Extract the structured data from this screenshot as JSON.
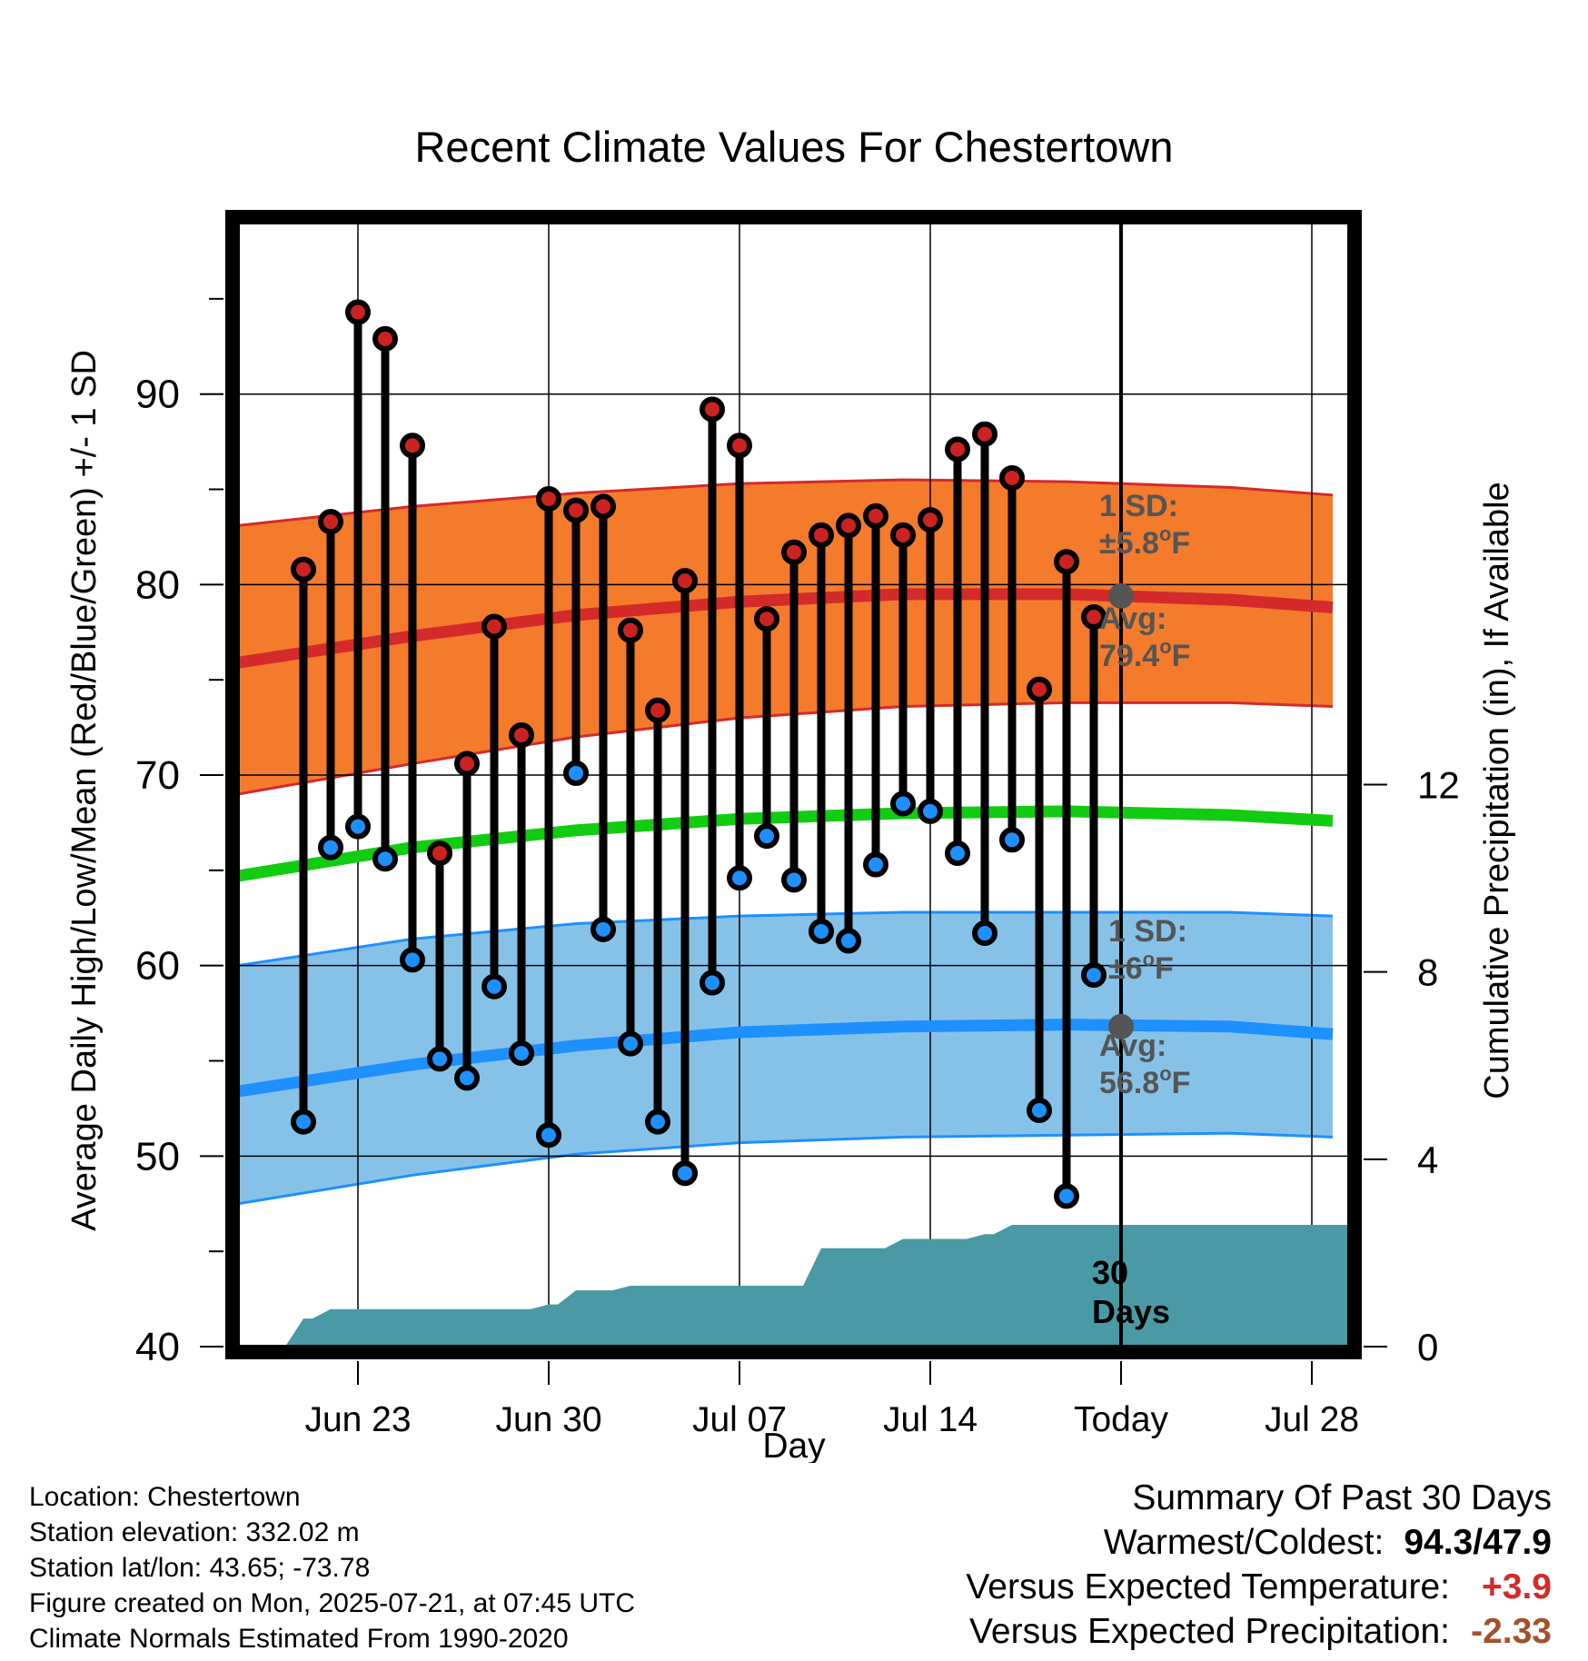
{
  "chart_data": {
    "type": "line",
    "title": "Recent Climate Values For Chestertown",
    "xlabel": "Day",
    "ylabel": "Average Daily High/Low/Mean (Red/Blue/Green) +/- 1 SD",
    "y2label": "Cumulative Precipitation (in), If Available",
    "ylim": [
      40,
      99
    ],
    "y2lim": [
      0,
      24
    ],
    "yticks": [
      40,
      50,
      60,
      70,
      80,
      90
    ],
    "y2ticks": [
      0,
      4,
      8,
      12
    ],
    "x_range": [
      "2025-06-19",
      "2025-07-31"
    ],
    "xticks": [
      {
        "date": "2025-06-23",
        "label": "Jun 23"
      },
      {
        "date": "2025-06-30",
        "label": "Jun 30"
      },
      {
        "date": "2025-07-07",
        "label": "Jul 07"
      },
      {
        "date": "2025-07-14",
        "label": "Jul 14"
      },
      {
        "date": "2025-07-21",
        "label": "Today"
      },
      {
        "date": "2025-07-28",
        "label": "Jul 28"
      }
    ],
    "grid": true,
    "today": "2025-07-21",
    "normals": {
      "dates": [
        "2025-06-19",
        "2025-06-25",
        "2025-07-01",
        "2025-07-07",
        "2025-07-13",
        "2025-07-19",
        "2025-07-25",
        "2025-07-31"
      ],
      "high_avg": [
        75.9,
        77.3,
        78.4,
        79.1,
        79.5,
        79.5,
        79.2,
        78.8
      ],
      "high_plus_sd": [
        83.1,
        84.1,
        84.8,
        85.3,
        85.5,
        85.4,
        85.1,
        84.7
      ],
      "high_minus_sd": [
        69.0,
        70.6,
        72.0,
        73.0,
        73.6,
        73.8,
        73.8,
        73.6
      ],
      "mean_avg": [
        64.7,
        66.2,
        67.1,
        67.7,
        68.0,
        68.1,
        67.9,
        67.6
      ],
      "low_avg": [
        53.4,
        54.8,
        55.8,
        56.5,
        56.8,
        56.9,
        56.8,
        56.4
      ],
      "low_plus_sd": [
        60.0,
        61.4,
        62.2,
        62.6,
        62.8,
        62.8,
        62.8,
        62.6
      ],
      "low_minus_sd": [
        47.5,
        49.0,
        50.1,
        50.7,
        51.0,
        51.1,
        51.2,
        51.0
      ]
    },
    "series": [
      {
        "name": "Daily High",
        "color": "#cc2222",
        "dates": [
          "2025-06-21",
          "2025-06-22",
          "2025-06-23",
          "2025-06-24",
          "2025-06-25",
          "2025-06-26",
          "2025-06-27",
          "2025-06-28",
          "2025-06-29",
          "2025-06-30",
          "2025-07-01",
          "2025-07-02",
          "2025-07-03",
          "2025-07-04",
          "2025-07-05",
          "2025-07-06",
          "2025-07-07",
          "2025-07-08",
          "2025-07-09",
          "2025-07-10",
          "2025-07-11",
          "2025-07-12",
          "2025-07-13",
          "2025-07-14",
          "2025-07-15",
          "2025-07-16",
          "2025-07-17",
          "2025-07-18",
          "2025-07-19",
          "2025-07-20"
        ],
        "values": [
          80.8,
          83.3,
          94.3,
          92.9,
          87.3,
          65.9,
          70.6,
          77.8,
          72.1,
          84.5,
          83.9,
          84.1,
          77.6,
          73.4,
          80.2,
          89.2,
          87.3,
          78.2,
          81.7,
          82.6,
          83.1,
          83.6,
          82.6,
          83.4,
          87.1,
          87.9,
          85.6,
          74.5,
          81.2,
          78.3
        ]
      },
      {
        "name": "Daily Low",
        "color": "#1e90ff",
        "dates": [
          "2025-06-21",
          "2025-06-22",
          "2025-06-23",
          "2025-06-24",
          "2025-06-25",
          "2025-06-26",
          "2025-06-27",
          "2025-06-28",
          "2025-06-29",
          "2025-06-30",
          "2025-07-01",
          "2025-07-02",
          "2025-07-03",
          "2025-07-04",
          "2025-07-05",
          "2025-07-06",
          "2025-07-07",
          "2025-07-08",
          "2025-07-09",
          "2025-07-10",
          "2025-07-11",
          "2025-07-12",
          "2025-07-13",
          "2025-07-14",
          "2025-07-15",
          "2025-07-16",
          "2025-07-17",
          "2025-07-18",
          "2025-07-19",
          "2025-07-20"
        ],
        "values": [
          51.8,
          66.2,
          67.3,
          65.6,
          60.3,
          55.1,
          54.1,
          58.9,
          55.4,
          51.1,
          70.1,
          61.9,
          55.9,
          51.8,
          49.1,
          59.1,
          64.6,
          66.8,
          64.5,
          61.8,
          61.3,
          65.3,
          68.5,
          68.1,
          65.9,
          61.7,
          66.6,
          52.4,
          47.9,
          59.5
        ]
      },
      {
        "name": "Cumulative Precipitation",
        "color": "#4a9aa5",
        "dates": [
          "2025-06-20",
          "2025-06-21",
          "2025-06-22",
          "2025-06-25",
          "2025-06-30",
          "2025-07-01",
          "2025-07-03",
          "2025-07-09",
          "2025-07-10",
          "2025-07-12",
          "2025-07-13",
          "2025-07-16",
          "2025-07-17",
          "2025-07-31"
        ],
        "values": [
          0.0,
          0.6,
          0.8,
          0.8,
          0.9,
          1.2,
          1.3,
          1.3,
          2.1,
          2.1,
          2.3,
          2.4,
          2.6,
          2.6
        ]
      }
    ],
    "annotations": {
      "high_sd": {
        "line1": "1 SD:",
        "line2": "±5.8",
        "unit": "F"
      },
      "high_avg": {
        "line1": "Avg:",
        "line2": "79.4",
        "unit": "F"
      },
      "low_sd": {
        "line1": "1 SD:",
        "line2": "±6",
        "unit": "F"
      },
      "low_avg": {
        "line1": "Avg:",
        "line2": "56.8",
        "unit": "F"
      },
      "precip": {
        "line1": "30",
        "line2": "Days"
      },
      "degree": "o"
    }
  },
  "info": {
    "location": "Location: Chestertown",
    "elevation": "Station elevation: 332.02 m",
    "latlon": "Station lat/lon: 43.65; -73.78",
    "created": "Figure created on Mon, 2025-07-21, at 07:45 UTC",
    "normals": "Climate Normals Estimated From 1990-2020"
  },
  "summary": {
    "title": "Summary Of Past 30 Days",
    "warm_cold_label": "Warmest/Coldest:",
    "warm_cold_value": "94.3/47.9",
    "temp_label": "Versus Expected Temperature:",
    "temp_value": "+3.9",
    "temp_color": "#d42a2a",
    "precip_label": "Versus Expected Precipitation:",
    "precip_value": "-2.33",
    "precip_color": "#a0522d"
  }
}
